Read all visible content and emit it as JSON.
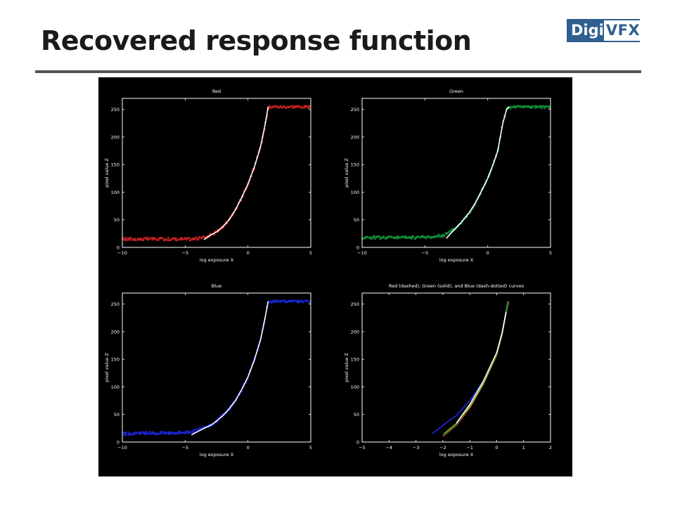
{
  "slide": {
    "title": "Recovered response function"
  },
  "logo": {
    "left": "Digi",
    "right": "VFX"
  },
  "colors": {
    "red": "#c02020",
    "green": "#108a3a",
    "blue": "#1a24d0",
    "fit": "#ffffff",
    "yellow": "#ffff00",
    "background": "#000000",
    "axes": "#ffffff"
  },
  "chart_data": [
    {
      "type": "scatter",
      "title": "Red",
      "xlabel": "log exposure X",
      "ylabel": "pixel value Z",
      "xlim": [
        -10,
        5
      ],
      "ylim": [
        0,
        270
      ],
      "xticks": [
        -10,
        -5,
        0,
        5
      ],
      "yticks": [
        0,
        50,
        100,
        150,
        200,
        250
      ],
      "series": [
        {
          "color_key": "red",
          "style": "points",
          "noise": 2.5,
          "x": [
            -10,
            -8,
            -6,
            -5,
            -4.5,
            -4,
            -3.5,
            -3,
            -2.5,
            -2,
            -1.5,
            -1,
            -0.5,
            0,
            0.5,
            1,
            1.3,
            1.5,
            1.7,
            2,
            3,
            4,
            5
          ],
          "y": [
            15,
            15,
            15,
            15,
            15,
            16,
            18,
            22,
            28,
            37,
            50,
            68,
            90,
            115,
            145,
            182,
            215,
            240,
            255,
            255,
            255,
            255,
            255
          ]
        },
        {
          "color_key": "fit",
          "style": "line",
          "x": [
            -3.5,
            -3,
            -2.5,
            -2,
            -1.5,
            -1,
            -0.5,
            0,
            0.5,
            1,
            1.3,
            1.5,
            1.6
          ],
          "y": [
            14,
            22,
            28,
            37,
            50,
            68,
            90,
            115,
            145,
            182,
            215,
            240,
            255
          ]
        }
      ]
    },
    {
      "type": "scatter",
      "title": "Green",
      "xlabel": "log exposure X",
      "ylabel": "pixel value Z",
      "xlim": [
        -10,
        5
      ],
      "ylim": [
        0,
        270
      ],
      "xticks": [
        -10,
        -5,
        0,
        5
      ],
      "yticks": [
        0,
        50,
        100,
        150,
        200,
        250
      ],
      "series": [
        {
          "color_key": "green",
          "style": "points",
          "noise": 2.5,
          "x": [
            -10,
            -8,
            -6,
            -4.5,
            -4,
            -3.5,
            -3,
            -2.5,
            -2,
            -1.5,
            -1,
            -0.5,
            0,
            0.5,
            0.8,
            1,
            1.2,
            1.5,
            2,
            3,
            4,
            5
          ],
          "y": [
            18,
            18,
            18,
            19,
            20,
            22,
            28,
            36,
            48,
            62,
            80,
            102,
            125,
            155,
            175,
            200,
            225,
            250,
            255,
            255,
            255,
            255
          ]
        },
        {
          "color_key": "fit",
          "style": "line",
          "x": [
            -3.3,
            -3,
            -2.5,
            -2,
            -1.5,
            -1,
            -0.5,
            0,
            0.5,
            0.8,
            1,
            1.2,
            1.5,
            1.7
          ],
          "y": [
            16,
            24,
            36,
            48,
            62,
            80,
            102,
            125,
            155,
            175,
            200,
            225,
            250,
            255
          ]
        }
      ]
    },
    {
      "type": "scatter",
      "title": "Blue",
      "xlabel": "log exposure X",
      "ylabel": "pixel value Z",
      "xlim": [
        -10,
        5
      ],
      "ylim": [
        0,
        270
      ],
      "xticks": [
        -10,
        -5,
        0,
        5
      ],
      "yticks": [
        0,
        50,
        100,
        150,
        200,
        250
      ],
      "series": [
        {
          "color_key": "blue",
          "style": "points",
          "noise": 2.5,
          "x": [
            -10,
            -8,
            -6,
            -5,
            -4.5,
            -4,
            -3.5,
            -3,
            -2.5,
            -2,
            -1.5,
            -1,
            -0.5,
            0,
            0.5,
            1,
            1.3,
            1.5,
            1.7,
            2,
            3,
            4,
            5
          ],
          "y": [
            15,
            16,
            17,
            18,
            19,
            21,
            25,
            30,
            38,
            48,
            60,
            75,
            95,
            118,
            148,
            185,
            218,
            242,
            255,
            255,
            255,
            255,
            255
          ]
        },
        {
          "color_key": "fit",
          "style": "line",
          "x": [
            -4.5,
            -4,
            -3.5,
            -3,
            -2.5,
            -2,
            -1.5,
            -1,
            -0.5,
            0,
            0.5,
            1,
            1.3,
            1.5,
            1.6
          ],
          "y": [
            13,
            19,
            25,
            30,
            38,
            48,
            60,
            75,
            95,
            118,
            148,
            185,
            218,
            242,
            255
          ]
        }
      ]
    },
    {
      "type": "line",
      "title": "Red (dashed), Green (solid), and Blue (dash-dotted) curves",
      "xlabel": "log exposure X",
      "ylabel": "pixel value Z",
      "xlim": [
        -5,
        2
      ],
      "ylim": [
        0,
        270
      ],
      "xticks": [
        -5,
        -4,
        -3,
        -2,
        -1,
        0,
        1,
        2
      ],
      "yticks": [
        0,
        50,
        100,
        150,
        200,
        250
      ],
      "series": [
        {
          "color_key": "blue",
          "style": "line",
          "x": [
            -2.4,
            -2,
            -1.5,
            -1,
            -0.5,
            0,
            0.2,
            0.35,
            0.45
          ],
          "y": [
            15,
            30,
            48,
            75,
            110,
            160,
            195,
            235,
            255
          ]
        },
        {
          "color_key": "red",
          "style": "line",
          "x": [
            -2,
            -1.5,
            -1,
            -0.5,
            0,
            0.2,
            0.35,
            0.45
          ],
          "y": [
            10,
            30,
            62,
            105,
            158,
            195,
            235,
            255
          ]
        },
        {
          "color_key": "yellow",
          "style": "line",
          "x": [
            -1.95,
            -1.5,
            -1,
            -0.5,
            0,
            0.2,
            0.35,
            0.42
          ],
          "y": [
            15,
            33,
            64,
            106,
            159,
            196,
            236,
            255
          ]
        },
        {
          "color_key": "green",
          "style": "line",
          "x": [
            -2,
            -1.5,
            -1,
            -0.5,
            0,
            0.2,
            0.35,
            0.42
          ],
          "y": [
            12,
            32,
            66,
            108,
            160,
            197,
            237,
            255
          ]
        },
        {
          "color_key": "fit",
          "style": "line",
          "x": [
            -1.5,
            -1,
            -0.5,
            0,
            0.2,
            0.35
          ],
          "y": [
            34,
            68,
            110,
            162,
            198,
            236
          ]
        }
      ]
    }
  ]
}
